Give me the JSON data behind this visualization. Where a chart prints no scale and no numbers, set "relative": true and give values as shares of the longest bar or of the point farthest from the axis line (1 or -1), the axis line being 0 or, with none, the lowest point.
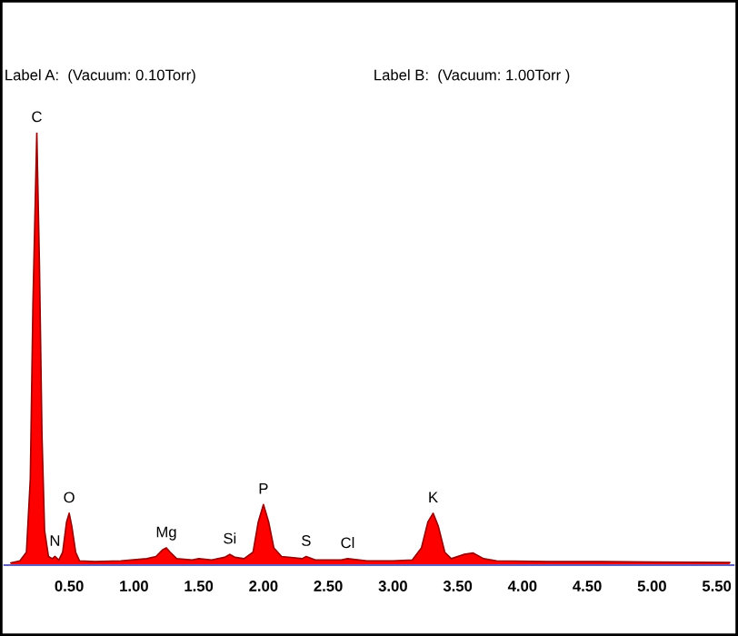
{
  "chart_data": {
    "type": "area",
    "relative": true,
    "color": "#ff0000",
    "x": [
      0.05,
      0.12,
      0.17,
      0.2,
      0.22,
      0.25,
      0.27,
      0.29,
      0.31,
      0.34,
      0.37,
      0.39,
      0.42,
      0.45,
      0.48,
      0.5,
      0.52,
      0.55,
      0.58,
      0.7,
      0.9,
      1.1,
      1.17,
      1.22,
      1.25,
      1.28,
      1.33,
      1.45,
      1.5,
      1.6,
      1.7,
      1.74,
      1.78,
      1.85,
      1.92,
      1.96,
      2.0,
      2.04,
      2.08,
      2.14,
      2.3,
      2.33,
      2.4,
      2.6,
      2.65,
      2.8,
      3.0,
      3.15,
      3.22,
      3.27,
      3.31,
      3.35,
      3.4,
      3.45,
      3.55,
      3.62,
      3.7,
      3.8,
      4.2,
      4.6,
      5.0,
      5.6
    ],
    "values": [
      0.005,
      0.01,
      0.03,
      0.2,
      0.6,
      1.0,
      0.7,
      0.3,
      0.08,
      0.02,
      0.015,
      0.02,
      0.012,
      0.03,
      0.1,
      0.12,
      0.09,
      0.03,
      0.01,
      0.008,
      0.01,
      0.015,
      0.02,
      0.035,
      0.04,
      0.03,
      0.015,
      0.012,
      0.015,
      0.012,
      0.018,
      0.025,
      0.018,
      0.015,
      0.03,
      0.1,
      0.14,
      0.1,
      0.04,
      0.02,
      0.015,
      0.02,
      0.012,
      0.012,
      0.015,
      0.01,
      0.01,
      0.012,
      0.04,
      0.1,
      0.12,
      0.09,
      0.03,
      0.015,
      0.025,
      0.028,
      0.015,
      0.01,
      0.008,
      0.008,
      0.007,
      0.006
    ],
    "xlim": [
      0,
      5.63
    ],
    "xticks": [
      {
        "value": 0.5,
        "label": "0.50"
      },
      {
        "value": 1.0,
        "label": "1.00"
      },
      {
        "value": 1.5,
        "label": "1.50"
      },
      {
        "value": 2.0,
        "label": "2.00"
      },
      {
        "value": 2.5,
        "label": "2.50"
      },
      {
        "value": 3.0,
        "label": "3.00"
      },
      {
        "value": 3.5,
        "label": "3.50"
      },
      {
        "value": 4.0,
        "label": "4.00"
      },
      {
        "value": 4.5,
        "label": "4.50"
      },
      {
        "value": 5.0,
        "label": "5.00"
      },
      {
        "value": 5.5,
        "label": "5.50"
      }
    ],
    "tick_labels": "x",
    "grid": false,
    "legend": false,
    "annotations": [
      "Label A:  (Vacuum: 0.10Torr)",
      "Label B:  (Vacuum: 1.00Torr )",
      {
        "text": "C",
        "x": 0.25,
        "y": 1.0
      },
      {
        "text": "N",
        "x": 0.39,
        "y": 0.02
      },
      {
        "text": "O",
        "x": 0.5,
        "y": 0.12
      },
      {
        "text": "Mg",
        "x": 1.25,
        "y": 0.04
      },
      {
        "text": "Si",
        "x": 1.74,
        "y": 0.025
      },
      {
        "text": "P",
        "x": 2.0,
        "y": 0.14
      },
      {
        "text": "S",
        "x": 2.33,
        "y": 0.02
      },
      {
        "text": "Cl",
        "x": 2.65,
        "y": 0.015
      },
      {
        "text": "K",
        "x": 3.31,
        "y": 0.12
      }
    ]
  }
}
